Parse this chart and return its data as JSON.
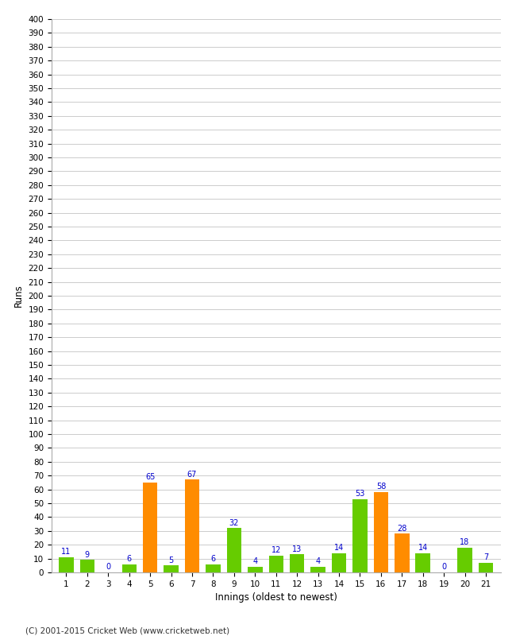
{
  "innings": [
    1,
    2,
    3,
    4,
    5,
    6,
    7,
    8,
    9,
    10,
    11,
    12,
    13,
    14,
    15,
    16,
    17,
    18,
    19,
    20,
    21
  ],
  "values": [
    11,
    9,
    0,
    6,
    65,
    5,
    67,
    6,
    32,
    4,
    12,
    13,
    4,
    14,
    53,
    58,
    28,
    14,
    0,
    18,
    7
  ],
  "colors": [
    "#66cc00",
    "#66cc00",
    "#66cc00",
    "#66cc00",
    "#ff8c00",
    "#66cc00",
    "#ff8c00",
    "#66cc00",
    "#66cc00",
    "#66cc00",
    "#66cc00",
    "#66cc00",
    "#66cc00",
    "#66cc00",
    "#66cc00",
    "#ff8c00",
    "#ff8c00",
    "#66cc00",
    "#66cc00",
    "#66cc00",
    "#66cc00"
  ],
  "xlabel": "Innings (oldest to newest)",
  "ylabel": "Runs",
  "ylim": [
    0,
    400
  ],
  "yticks": [
    0,
    10,
    20,
    30,
    40,
    50,
    60,
    70,
    80,
    90,
    100,
    110,
    120,
    130,
    140,
    150,
    160,
    170,
    180,
    190,
    200,
    210,
    220,
    230,
    240,
    250,
    260,
    270,
    280,
    290,
    300,
    310,
    320,
    330,
    340,
    350,
    360,
    370,
    380,
    390,
    400
  ],
  "footer": "(C) 2001-2015 Cricket Web (www.cricketweb.net)",
  "label_color": "#0000cc",
  "background_color": "#ffffff",
  "grid_color": "#cccccc",
  "bar_width": 0.7,
  "xlim_left": 0.3,
  "xlim_right": 21.7
}
